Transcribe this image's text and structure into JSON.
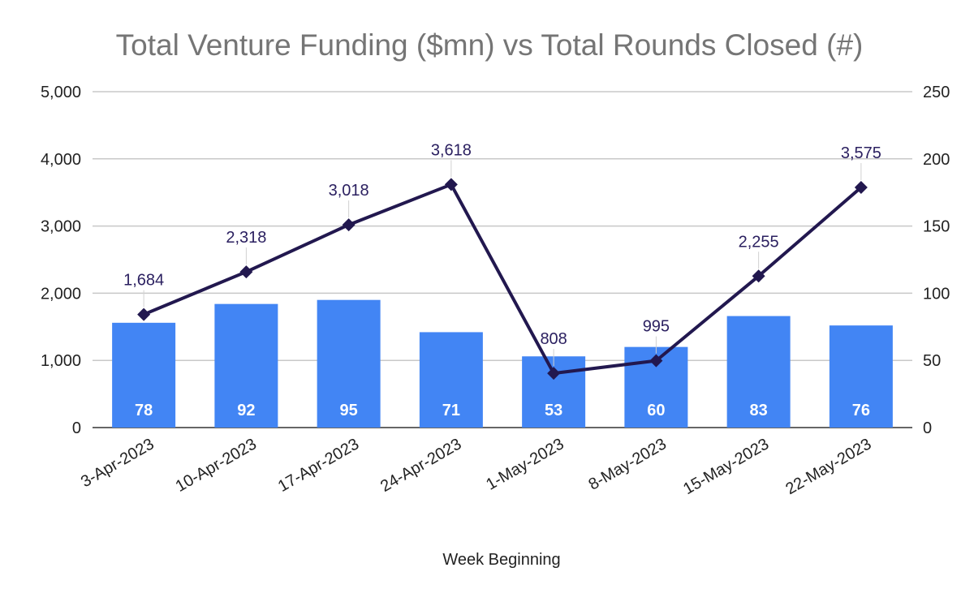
{
  "chart_data": {
    "type": "bar",
    "title": "Total Venture Funding ($mn) vs Total Rounds Closed (#)",
    "xlabel": "Week Beginning",
    "ylabel": "",
    "y2label": "",
    "categories": [
      "3-Apr-2023",
      "10-Apr-2023",
      "17-Apr-2023",
      "24-Apr-2023",
      "1-May-2023",
      "8-May-2023",
      "15-May-2023",
      "22-May-2023"
    ],
    "series": [
      {
        "name": "Total Rounds Closed (#)",
        "type": "bar",
        "axis": "right",
        "color": "#4285f4",
        "values": [
          78,
          92,
          95,
          71,
          53,
          60,
          83,
          76
        ]
      },
      {
        "name": "Total Venture Funding ($mn)",
        "type": "line",
        "axis": "left",
        "color": "#22184f",
        "marker": "diamond",
        "values": [
          1684,
          2318,
          3018,
          3618,
          808,
          995,
          2255,
          3575
        ]
      }
    ],
    "ylim": [
      0,
      5000
    ],
    "y2lim": [
      0,
      250
    ],
    "yticks": [
      "0",
      "1,000",
      "2,000",
      "3,000",
      "4,000",
      "5,000"
    ],
    "y2ticks": [
      "0",
      "50",
      "100",
      "150",
      "200",
      "250"
    ],
    "line_data_labels": [
      "1,684",
      "2,318",
      "3,018",
      "3,618",
      "808",
      "995",
      "2,255",
      "3,575"
    ],
    "bar_data_labels": [
      "78",
      "92",
      "95",
      "71",
      "53",
      "60",
      "83",
      "76"
    ],
    "grid": true,
    "legend": "none"
  }
}
